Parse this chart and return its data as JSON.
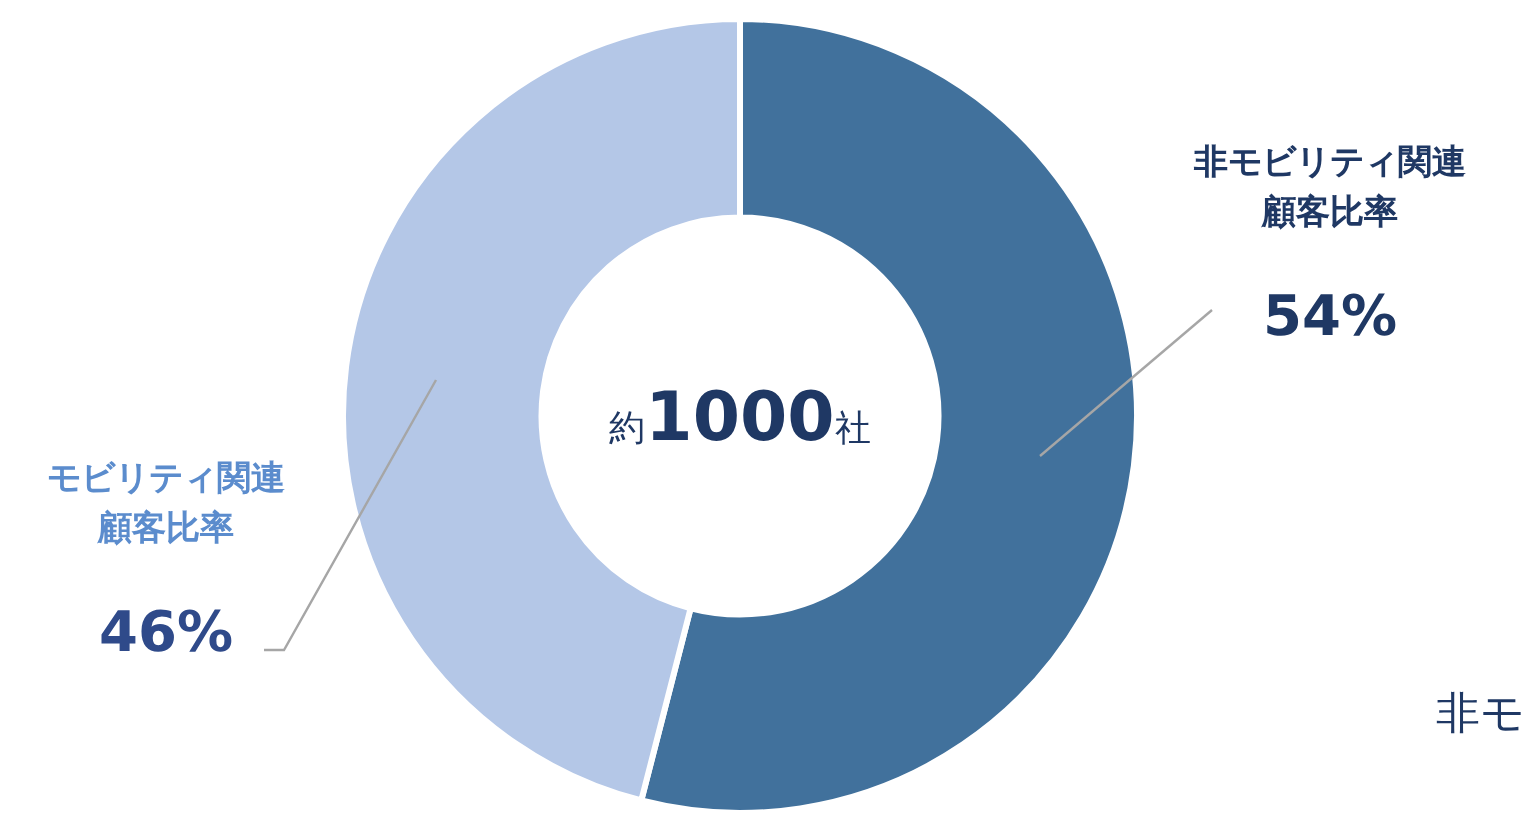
{
  "chart_data": {
    "type": "donut",
    "categories": [
      "非モビリティ関連顧客比率",
      "モビリティ関連顧客比率"
    ],
    "value_labels": [
      "54%",
      "46%"
    ],
    "values": [
      54,
      46
    ],
    "colors": [
      "#41719c",
      "#b4c7e7"
    ],
    "legend": false,
    "annotations": [
      "約1000社",
      "非モ"
    ]
  }
}
